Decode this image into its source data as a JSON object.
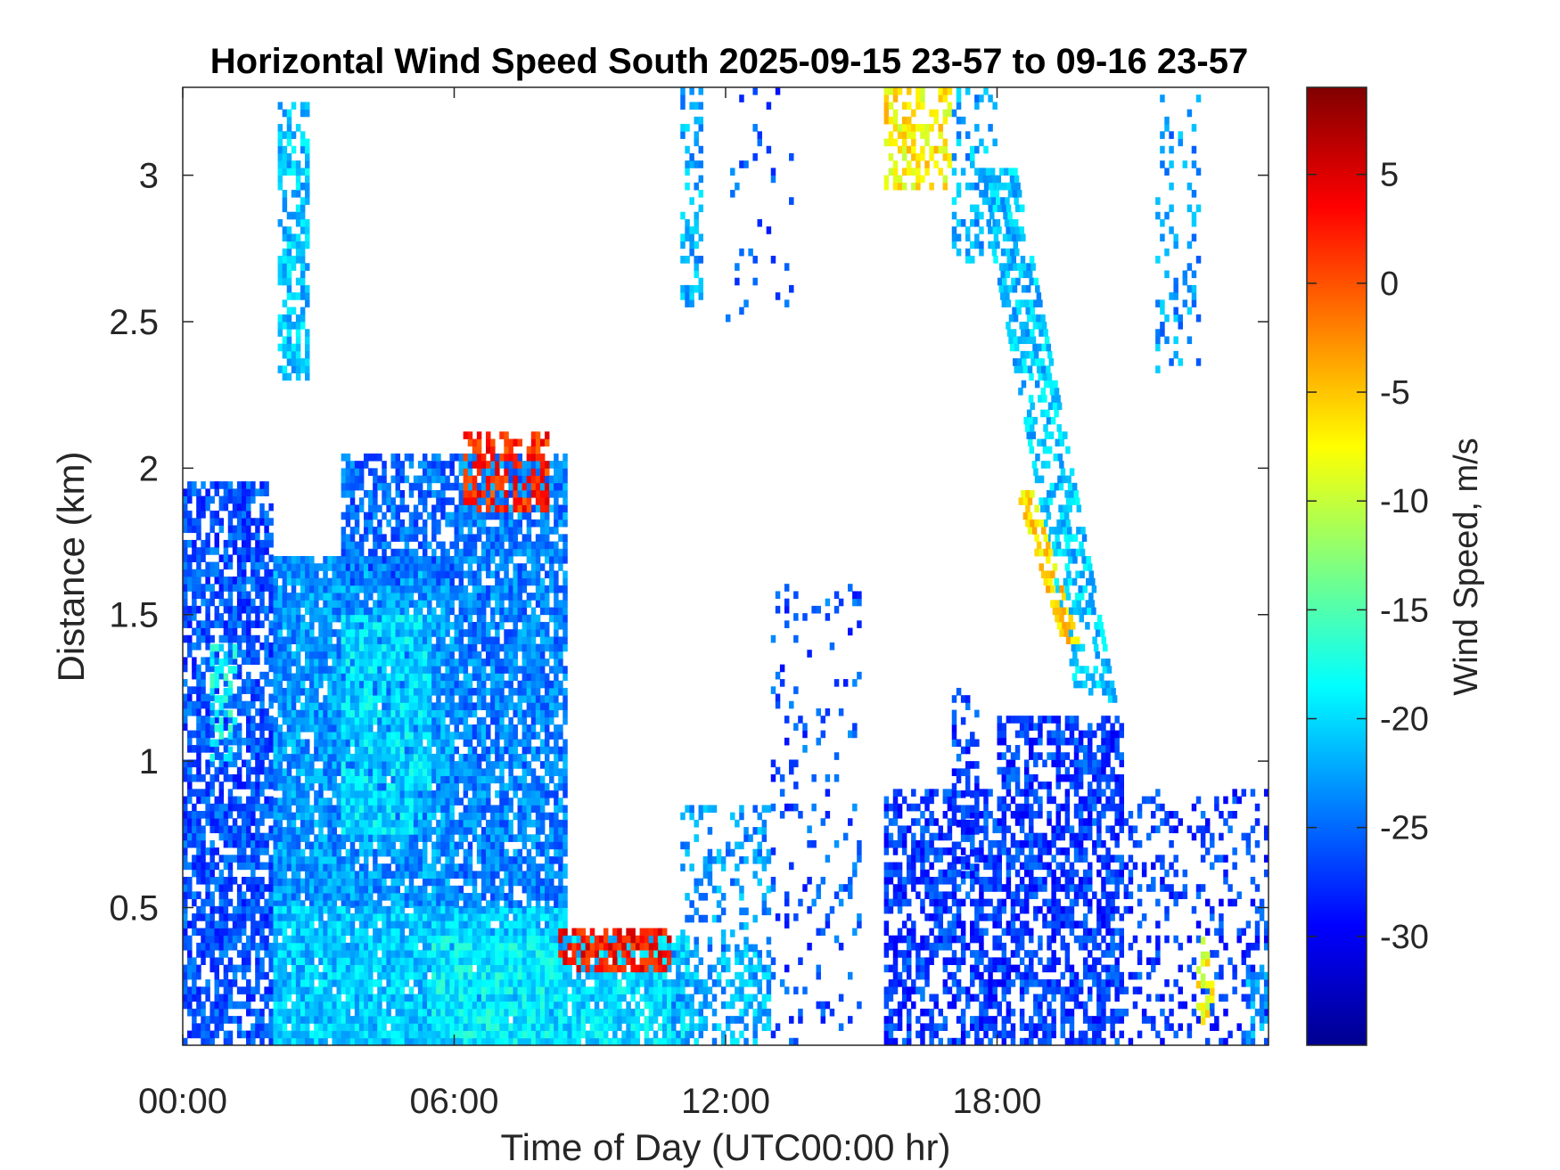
{
  "chart_data": {
    "type": "heatmap",
    "title": "Horizontal Wind Speed South 2025-09-15 23-57 to 09-16 23-57",
    "xlabel": "Time of Day (UTC00:00 hr)",
    "ylabel": "Distance (km)",
    "colorbar_label": "Wind Speed, m/s",
    "colormap": "jet",
    "xlim_hours": [
      0,
      24
    ],
    "ylim_km": [
      0.03,
      3.3
    ],
    "clim": [
      -35,
      9
    ],
    "x_ticks": [
      {
        "value": 0,
        "label": "00:00"
      },
      {
        "value": 6,
        "label": "06:00"
      },
      {
        "value": 12,
        "label": "12:00"
      },
      {
        "value": 18,
        "label": "18:00"
      }
    ],
    "y_ticks": [
      {
        "value": 0.5,
        "label": "0.5"
      },
      {
        "value": 1,
        "label": "1"
      },
      {
        "value": 1.5,
        "label": "1.5"
      },
      {
        "value": 2,
        "label": "2"
      },
      {
        "value": 2.5,
        "label": "2.5"
      },
      {
        "value": 3,
        "label": "3"
      }
    ],
    "colorbar_ticks": [
      {
        "value": 5,
        "label": "5"
      },
      {
        "value": 0,
        "label": "0"
      },
      {
        "value": -5,
        "label": "-5"
      },
      {
        "value": -10,
        "label": "-10"
      },
      {
        "value": -15,
        "label": "-15"
      },
      {
        "value": -20,
        "label": "-20"
      },
      {
        "value": -25,
        "label": "-25"
      },
      {
        "value": -30,
        "label": "-30"
      }
    ],
    "regions": [
      {
        "t": [
          0,
          2.0
        ],
        "d": [
          0.03,
          1.95
        ],
        "v": -26,
        "fill": 0.72
      },
      {
        "t": [
          0.6,
          1.2
        ],
        "d": [
          1.0,
          1.4
        ],
        "v": -18,
        "fill": 0.5
      },
      {
        "t": [
          2.0,
          6.0
        ],
        "d": [
          0.5,
          1.7
        ],
        "v": -23,
        "fill": 0.9
      },
      {
        "t": [
          3.5,
          5.5
        ],
        "d": [
          0.75,
          1.5
        ],
        "v": -20,
        "fill": 0.8
      },
      {
        "t": [
          2.0,
          8.5
        ],
        "d": [
          0.03,
          0.5
        ],
        "v": -21,
        "fill": 0.96
      },
      {
        "t": [
          5.5,
          8.3
        ],
        "d": [
          0.03,
          0.4
        ],
        "v": -19,
        "fill": 0.96
      },
      {
        "t": [
          3.5,
          6.0
        ],
        "d": [
          1.6,
          2.05
        ],
        "v": -25,
        "fill": 0.65
      },
      {
        "t": [
          6.0,
          8.5
        ],
        "d": [
          0.5,
          2.05
        ],
        "v": -24,
        "fill": 0.82
      },
      {
        "t": [
          6.2,
          8.1
        ],
        "d": [
          1.85,
          2.12
        ],
        "v": 2,
        "fill": 0.6
      },
      {
        "t": [
          2.1,
          2.8
        ],
        "d": [
          2.3,
          3.25
        ],
        "v": -21,
        "fill": 0.62
      },
      {
        "t": [
          8.2,
          11.2
        ],
        "d": [
          0.03,
          0.4
        ],
        "v": -20,
        "fill": 0.82
      },
      {
        "t": [
          8.3,
          10.8
        ],
        "d": [
          0.28,
          0.42
        ],
        "v": 3,
        "fill": 0.58
      },
      {
        "t": [
          10.8,
          13.0
        ],
        "d": [
          0.03,
          0.35
        ],
        "v": -22,
        "fill": 0.55
      },
      {
        "t": [
          11.0,
          13.0
        ],
        "d": [
          0.35,
          0.85
        ],
        "v": -23,
        "fill": 0.3
      },
      {
        "t": [
          13.0,
          15.0
        ],
        "d": [
          0.03,
          1.6
        ],
        "v": -26,
        "fill": 0.12
      },
      {
        "t": [
          15.5,
          18.0
        ],
        "d": [
          0.03,
          0.9
        ],
        "v": -27,
        "fill": 0.6
      },
      {
        "t": [
          17.0,
          17.6
        ],
        "d": [
          0.6,
          1.25
        ],
        "v": -27,
        "fill": 0.5
      },
      {
        "t": [
          18.0,
          20.8
        ],
        "d": [
          0.03,
          1.15
        ],
        "v": -27,
        "fill": 0.62
      },
      {
        "t": [
          20.8,
          24.0
        ],
        "d": [
          0.03,
          0.9
        ],
        "v": -27,
        "fill": 0.25
      },
      {
        "t": [
          22.4,
          22.8
        ],
        "d": [
          0.1,
          0.4
        ],
        "v": -8,
        "fill": 0.45
      },
      {
        "t": [
          23.5,
          24.0
        ],
        "d": [
          0.03,
          0.3
        ],
        "v": -23,
        "fill": 0.5
      },
      {
        "t": [
          11.0,
          11.5
        ],
        "d": [
          2.55,
          3.3
        ],
        "v": -22,
        "fill": 0.45
      },
      {
        "t": [
          15.5,
          17.0
        ],
        "d": [
          2.95,
          3.3
        ],
        "v": -7,
        "fill": 0.5
      },
      {
        "t": [
          17.0,
          18.0
        ],
        "d": [
          2.7,
          3.3
        ],
        "v": -22,
        "fill": 0.3
      },
      {
        "t": [
          21.5,
          22.5
        ],
        "d": [
          2.3,
          3.3
        ],
        "v": -23,
        "fill": 0.2
      },
      {
        "t": [
          12.0,
          13.5
        ],
        "d": [
          2.5,
          3.3
        ],
        "v": -26,
        "fill": 0.07
      }
    ],
    "streaks": [
      {
        "t0": 18.0,
        "d0": 3.0,
        "t1": 20.2,
        "d1": 1.2,
        "width_h": 0.9,
        "v": -21
      },
      {
        "t0": 18.6,
        "d0": 1.9,
        "t1": 19.6,
        "d1": 1.4,
        "width_h": 0.35,
        "v": -6
      }
    ]
  }
}
